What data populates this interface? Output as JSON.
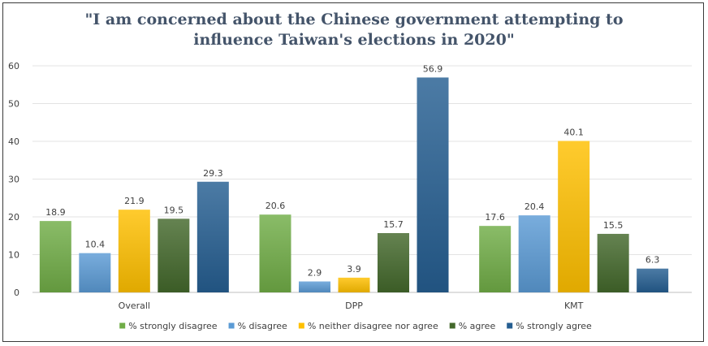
{
  "chart_data": {
    "type": "bar",
    "title_line1": "\"I am concerned about the Chinese government attempting to",
    "title_line2": "influence Taiwan's elections in 2020\"",
    "categories": [
      "Overall",
      "DPP",
      "KMT"
    ],
    "series": [
      {
        "name": "% strongly disagree",
        "values": [
          18.9,
          20.6,
          17.6
        ],
        "color": "#70ad47"
      },
      {
        "name": "% disagree",
        "values": [
          10.4,
          2.9,
          20.4
        ],
        "color": "#5b9bd5"
      },
      {
        "name": "% neither disagree nor agree",
        "values": [
          21.9,
          3.9,
          40.1
        ],
        "color": "#ffc000"
      },
      {
        "name": "% agree",
        "values": [
          19.5,
          15.7,
          15.5
        ],
        "color": "#43682b"
      },
      {
        "name": "% strongly agree",
        "values": [
          29.3,
          56.9,
          6.3
        ],
        "color": "#255e91"
      }
    ],
    "yticks": [
      0,
      10,
      20,
      30,
      40,
      50,
      60
    ],
    "ylim": [
      0,
      60
    ],
    "grid": true,
    "legend_position": "bottom"
  }
}
